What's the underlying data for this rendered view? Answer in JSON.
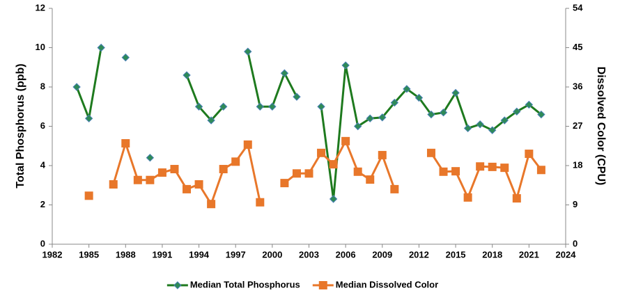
{
  "chart_data": {
    "type": "line",
    "x": [
      1984,
      1985,
      1986,
      1987,
      1988,
      1989,
      1990,
      1991,
      1992,
      1993,
      1994,
      1995,
      1996,
      1997,
      1998,
      1999,
      2000,
      2001,
      2002,
      2003,
      2004,
      2005,
      2006,
      2007,
      2008,
      2009,
      2010,
      2011,
      2012,
      2013,
      2014,
      2015,
      2016,
      2017,
      2018,
      2019,
      2020,
      2021,
      2022
    ],
    "series": [
      {
        "name": "Median Total Phosphorus",
        "color": "#1e7a1e",
        "marker_color": "#2e8b57",
        "marker_edge": "#4a7fb5",
        "marker": "diamond",
        "values": [
          8.0,
          6.4,
          10.0,
          null,
          9.5,
          null,
          4.4,
          null,
          null,
          8.6,
          7.0,
          6.3,
          7.0,
          null,
          9.8,
          7.0,
          7.0,
          8.7,
          7.5,
          null,
          7.0,
          2.3,
          9.1,
          6.0,
          6.4,
          6.45,
          7.2,
          7.9,
          7.45,
          6.6,
          6.7,
          7.7,
          5.9,
          6.1,
          5.8,
          6.3,
          6.75,
          7.1,
          6.6
        ]
      },
      {
        "name": "Median Dissolved Color",
        "color": "#e8772a",
        "marker_color": "#e8772a",
        "marker_edge": "#e8772a",
        "marker": "square",
        "axis": "y2",
        "values": [
          null,
          11.1,
          null,
          13.7,
          23.1,
          14.7,
          14.7,
          16.4,
          17.2,
          12.6,
          13.7,
          9.2,
          17.2,
          18.9,
          22.8,
          9.6,
          null,
          14.0,
          16.2,
          16.2,
          20.9,
          18.3,
          23.6,
          16.6,
          14.8,
          20.4,
          12.6,
          null,
          null,
          20.9,
          16.6,
          16.7,
          10.7,
          17.8,
          17.7,
          17.5,
          10.5,
          20.7,
          17.0
        ]
      }
    ],
    "y_label": "Total Phosphorus (ppb)",
    "y2_label": "Dissolved Color (CPU)",
    "xlim": [
      1982,
      2024
    ],
    "xticks": [
      1982,
      1985,
      1988,
      1991,
      1994,
      1997,
      2000,
      2003,
      2006,
      2009,
      2012,
      2015,
      2018,
      2021,
      2024
    ],
    "ylim": [
      0,
      12
    ],
    "yticks": [
      0,
      2,
      4,
      6,
      8,
      10,
      12
    ],
    "y2lim": [
      0,
      54
    ],
    "y2ticks": [
      0,
      9,
      18,
      27,
      36,
      45,
      54
    ],
    "grid": false,
    "legend": "bottom"
  }
}
